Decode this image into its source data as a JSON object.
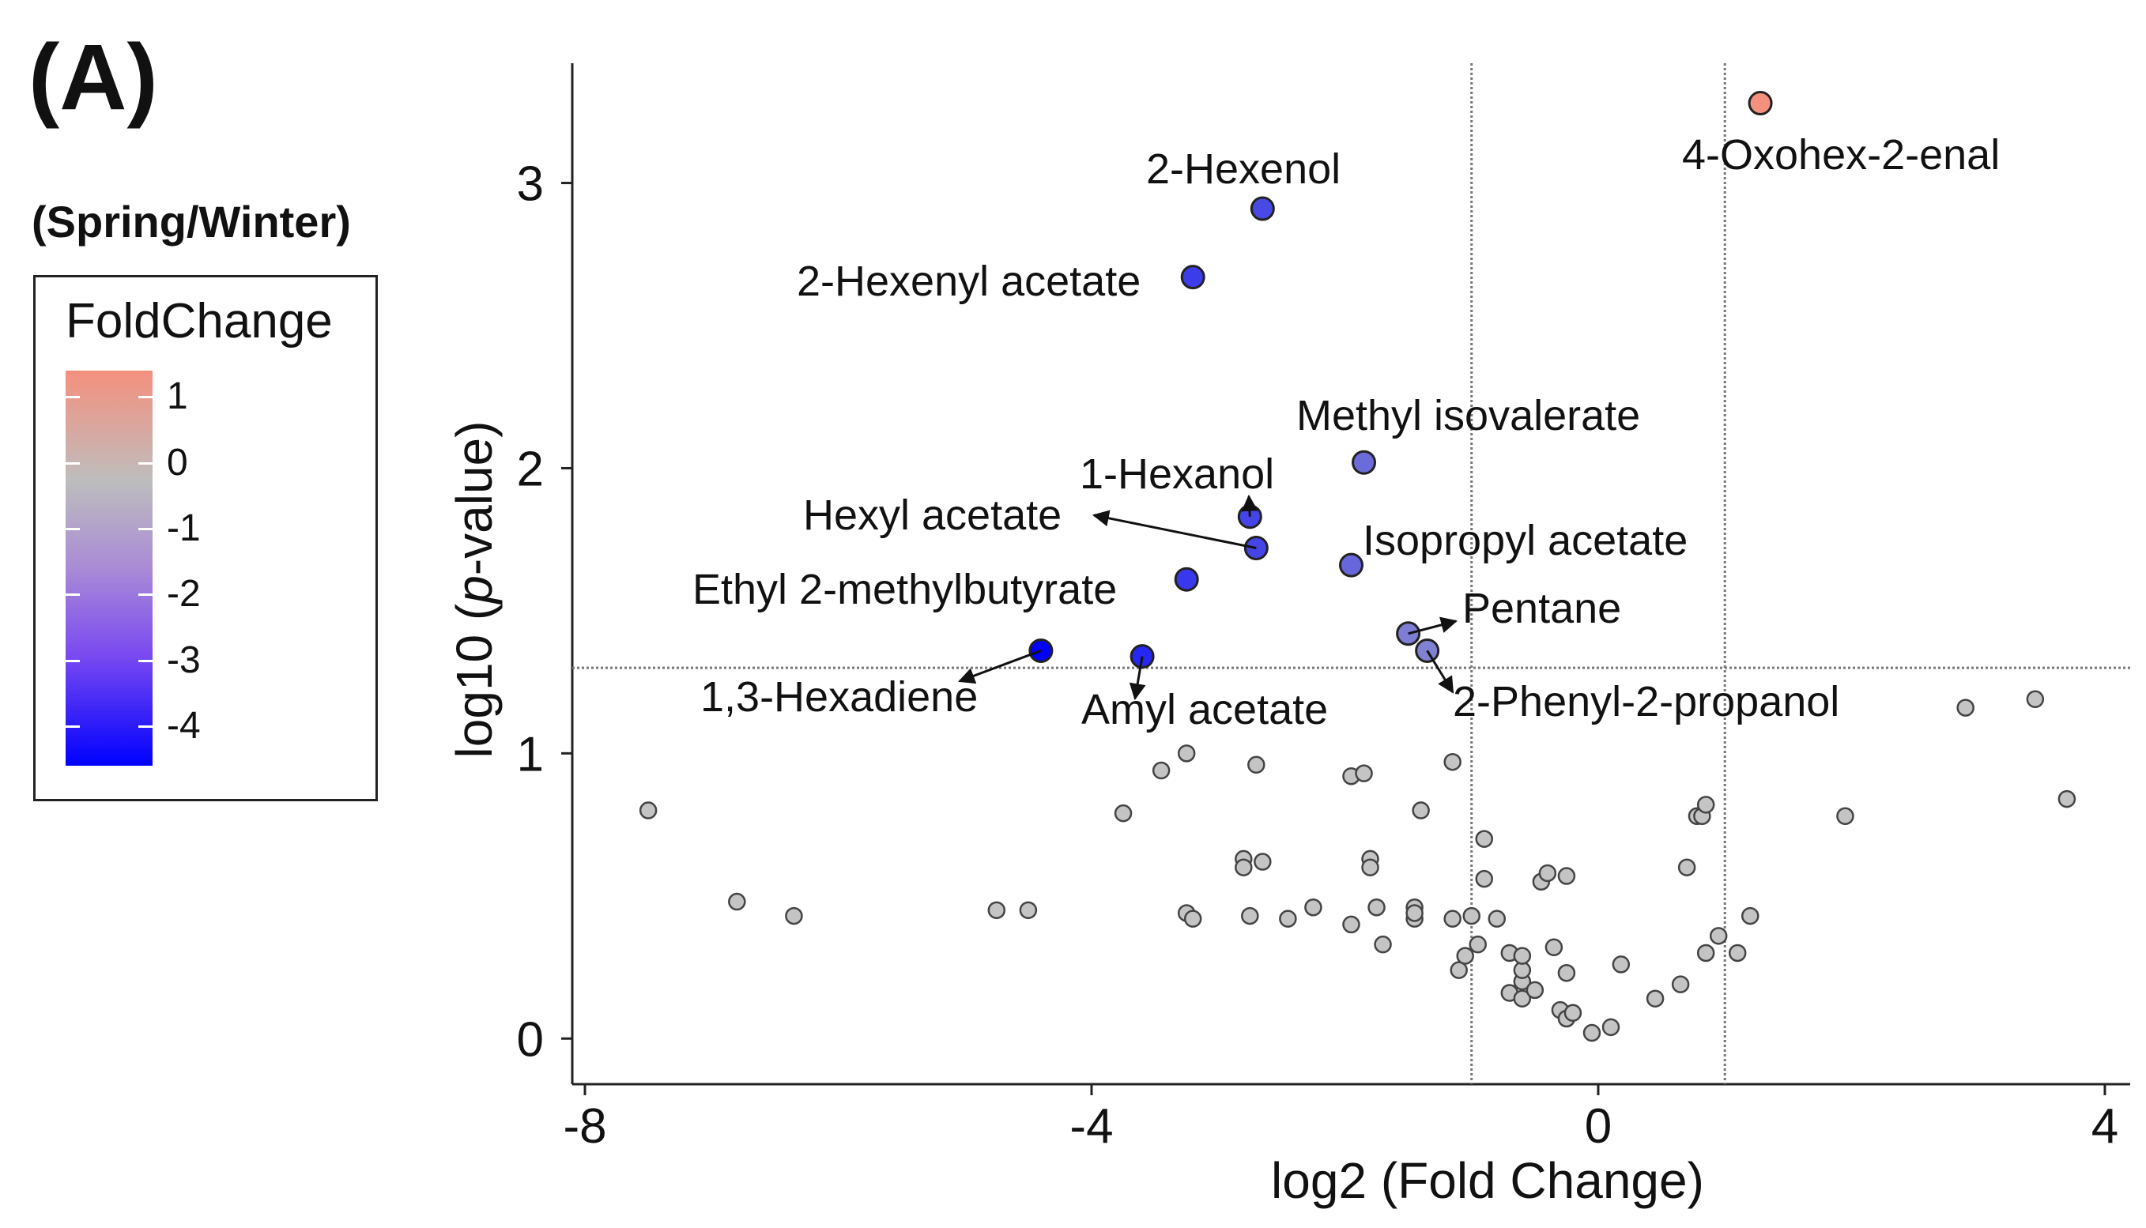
{
  "panel_label": "(A)",
  "comparison": "(Spring/Winter)",
  "legend": {
    "title": "FoldChange",
    "ticks": [
      "1",
      "0",
      "-1",
      "-2",
      "-3",
      "-4"
    ],
    "tick_values": [
      1,
      0,
      -1,
      -2,
      -3,
      -4
    ]
  },
  "chart_data": {
    "type": "scatter",
    "subtype": "volcano",
    "xlabel": "log2 (Fold Change)",
    "ylabel_prefix": "log10 (",
    "ylabel_italic": "p",
    "ylabel_suffix": "-value)",
    "xlim": [
      -8.1,
      4.2
    ],
    "ylim": [
      -0.16,
      3.42
    ],
    "xticks": [
      -8,
      -4,
      0,
      4
    ],
    "xtick_labels": [
      "-8",
      "-4",
      "0",
      "4"
    ],
    "yticks": [
      0,
      1,
      2,
      3
    ],
    "ytick_labels": [
      "0",
      "1",
      "2",
      "3"
    ],
    "thresholds": {
      "x": [
        -1,
        1
      ],
      "y": 1.3
    },
    "colors": {
      "up": "#f4907e",
      "zero": "#bdbdbd",
      "down": "#0000ff",
      "nonsig": "#c4c4c4"
    },
    "significant": [
      {
        "name": "4-Oxohex-2-enal",
        "x": 1.28,
        "y": 3.28,
        "fc": 1.2
      },
      {
        "name": "2-Hexenol",
        "x": -2.65,
        "y": 2.91,
        "fc": -2.7
      },
      {
        "name": "2-Hexenyl acetate",
        "x": -3.2,
        "y": 2.67,
        "fc": -3.0
      },
      {
        "name": "Methyl isovalerate",
        "x": -1.85,
        "y": 2.02,
        "fc": -1.9
      },
      {
        "name": "1-Hexanol",
        "x": -2.75,
        "y": 1.83,
        "fc": -2.8
      },
      {
        "name": "Hexyl acetate",
        "x": -2.7,
        "y": 1.72,
        "fc": -2.8
      },
      {
        "name": "Isopropyl acetate",
        "x": -1.95,
        "y": 1.66,
        "fc": -2.0
      },
      {
        "name": "Ethyl 2-methylbutyrate",
        "x": -3.25,
        "y": 1.61,
        "fc": -3.1
      },
      {
        "name": "Pentane",
        "x": -1.5,
        "y": 1.42,
        "fc": -1.5
      },
      {
        "name": "2-Phenyl-2-propanol",
        "x": -1.35,
        "y": 1.36,
        "fc": -1.4
      },
      {
        "name": "1,3-Hexadiene",
        "x": -4.4,
        "y": 1.36,
        "fc": -4.4
      },
      {
        "name": "Amyl acetate",
        "x": -3.6,
        "y": 1.34,
        "fc": -3.5
      }
    ],
    "nonsignificant": [
      [
        -7.5,
        0.8
      ],
      [
        -6.8,
        0.48
      ],
      [
        -6.35,
        0.43
      ],
      [
        -4.75,
        0.45
      ],
      [
        -4.5,
        0.45
      ],
      [
        -3.75,
        0.79
      ],
      [
        -3.45,
        0.94
      ],
      [
        -3.25,
        1.0
      ],
      [
        -3.25,
        0.44
      ],
      [
        -3.2,
        0.42
      ],
      [
        -2.8,
        0.63
      ],
      [
        -2.8,
        0.6
      ],
      [
        -2.75,
        0.43
      ],
      [
        -2.65,
        0.62
      ],
      [
        -2.7,
        0.96
      ],
      [
        -2.45,
        0.42
      ],
      [
        -2.25,
        0.46
      ],
      [
        -1.95,
        0.92
      ],
      [
        -1.95,
        0.4
      ],
      [
        -1.85,
        0.93
      ],
      [
        -1.8,
        0.63
      ],
      [
        -1.8,
        0.6
      ],
      [
        -1.75,
        0.46
      ],
      [
        -1.7,
        0.33
      ],
      [
        -1.45,
        0.46
      ],
      [
        -1.45,
        0.42
      ],
      [
        -1.45,
        0.44
      ],
      [
        -1.4,
        0.8
      ],
      [
        -1.15,
        0.42
      ],
      [
        -1.1,
        0.24
      ],
      [
        -1.05,
        0.29
      ],
      [
        -1.15,
        0.97
      ],
      [
        -1.0,
        0.43
      ],
      [
        -0.95,
        0.33
      ],
      [
        -0.9,
        0.7
      ],
      [
        -0.9,
        0.56
      ],
      [
        -0.8,
        0.42
      ],
      [
        -0.7,
        0.3
      ],
      [
        -0.7,
        0.16
      ],
      [
        -0.6,
        0.2
      ],
      [
        -0.6,
        0.24
      ],
      [
        -0.6,
        0.14
      ],
      [
        -0.6,
        0.29
      ],
      [
        -0.5,
        0.17
      ],
      [
        -0.45,
        0.55
      ],
      [
        -0.4,
        0.58
      ],
      [
        -0.35,
        0.32
      ],
      [
        -0.3,
        0.1
      ],
      [
        -0.25,
        0.07
      ],
      [
        -0.2,
        0.09
      ],
      [
        -0.25,
        0.23
      ],
      [
        -0.25,
        0.57
      ],
      [
        -0.05,
        0.02
      ],
      [
        0.1,
        0.04
      ],
      [
        0.18,
        0.26
      ],
      [
        0.45,
        0.14
      ],
      [
        0.65,
        0.19
      ],
      [
        0.7,
        0.6
      ],
      [
        0.78,
        0.78
      ],
      [
        0.82,
        0.78
      ],
      [
        0.85,
        0.82
      ],
      [
        0.85,
        0.3
      ],
      [
        0.95,
        0.36
      ],
      [
        1.1,
        0.3
      ],
      [
        1.2,
        0.43
      ],
      [
        1.95,
        0.78
      ],
      [
        2.9,
        1.16
      ],
      [
        3.45,
        1.19
      ],
      [
        3.7,
        0.84
      ]
    ]
  },
  "annotations": {
    "arrow_items": [
      "1-Hexanol",
      "Hexyl acetate",
      "Pentane",
      "2-Phenyl-2-propanol",
      "1,3-Hexadiene",
      "Amyl acetate"
    ]
  }
}
